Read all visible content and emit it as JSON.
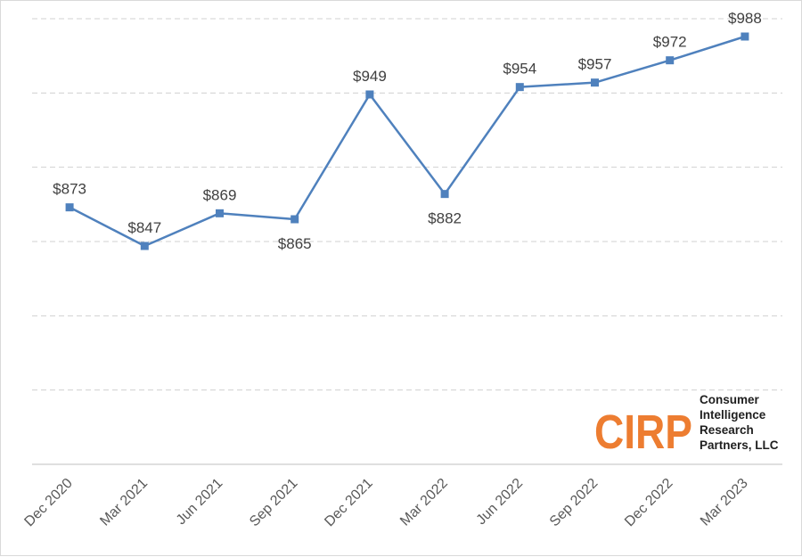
{
  "chart_data": {
    "type": "line",
    "title": "",
    "xlabel": "",
    "ylabel": "",
    "categories": [
      "Dec 2020",
      "Mar 2021",
      "Jun 2021",
      "Sep 2021",
      "Dec 2021",
      "Mar 2022",
      "Jun 2022",
      "Sep 2022",
      "Dec 2022",
      "Mar 2023"
    ],
    "series": [
      {
        "values": [
          873,
          847,
          869,
          865,
          949,
          882,
          954,
          957,
          972,
          988
        ],
        "labels": [
          "$873",
          "$847",
          "$869",
          "$865",
          "$949",
          "$882",
          "$954",
          "$957",
          "$972",
          "$988"
        ],
        "label_positions": [
          "above",
          "above",
          "above",
          "below",
          "above",
          "below",
          "above",
          "above",
          "above",
          "above"
        ],
        "color": "#4f81bd"
      }
    ],
    "ylim": [
      700,
      1000
    ],
    "grid": true,
    "legend": "none"
  },
  "logo": {
    "letters": "CIRP",
    "line1": "Consumer",
    "line2": "Intelligence",
    "line3": "Research",
    "line4": "Partners, LLC",
    "color": "#ed7d31"
  }
}
